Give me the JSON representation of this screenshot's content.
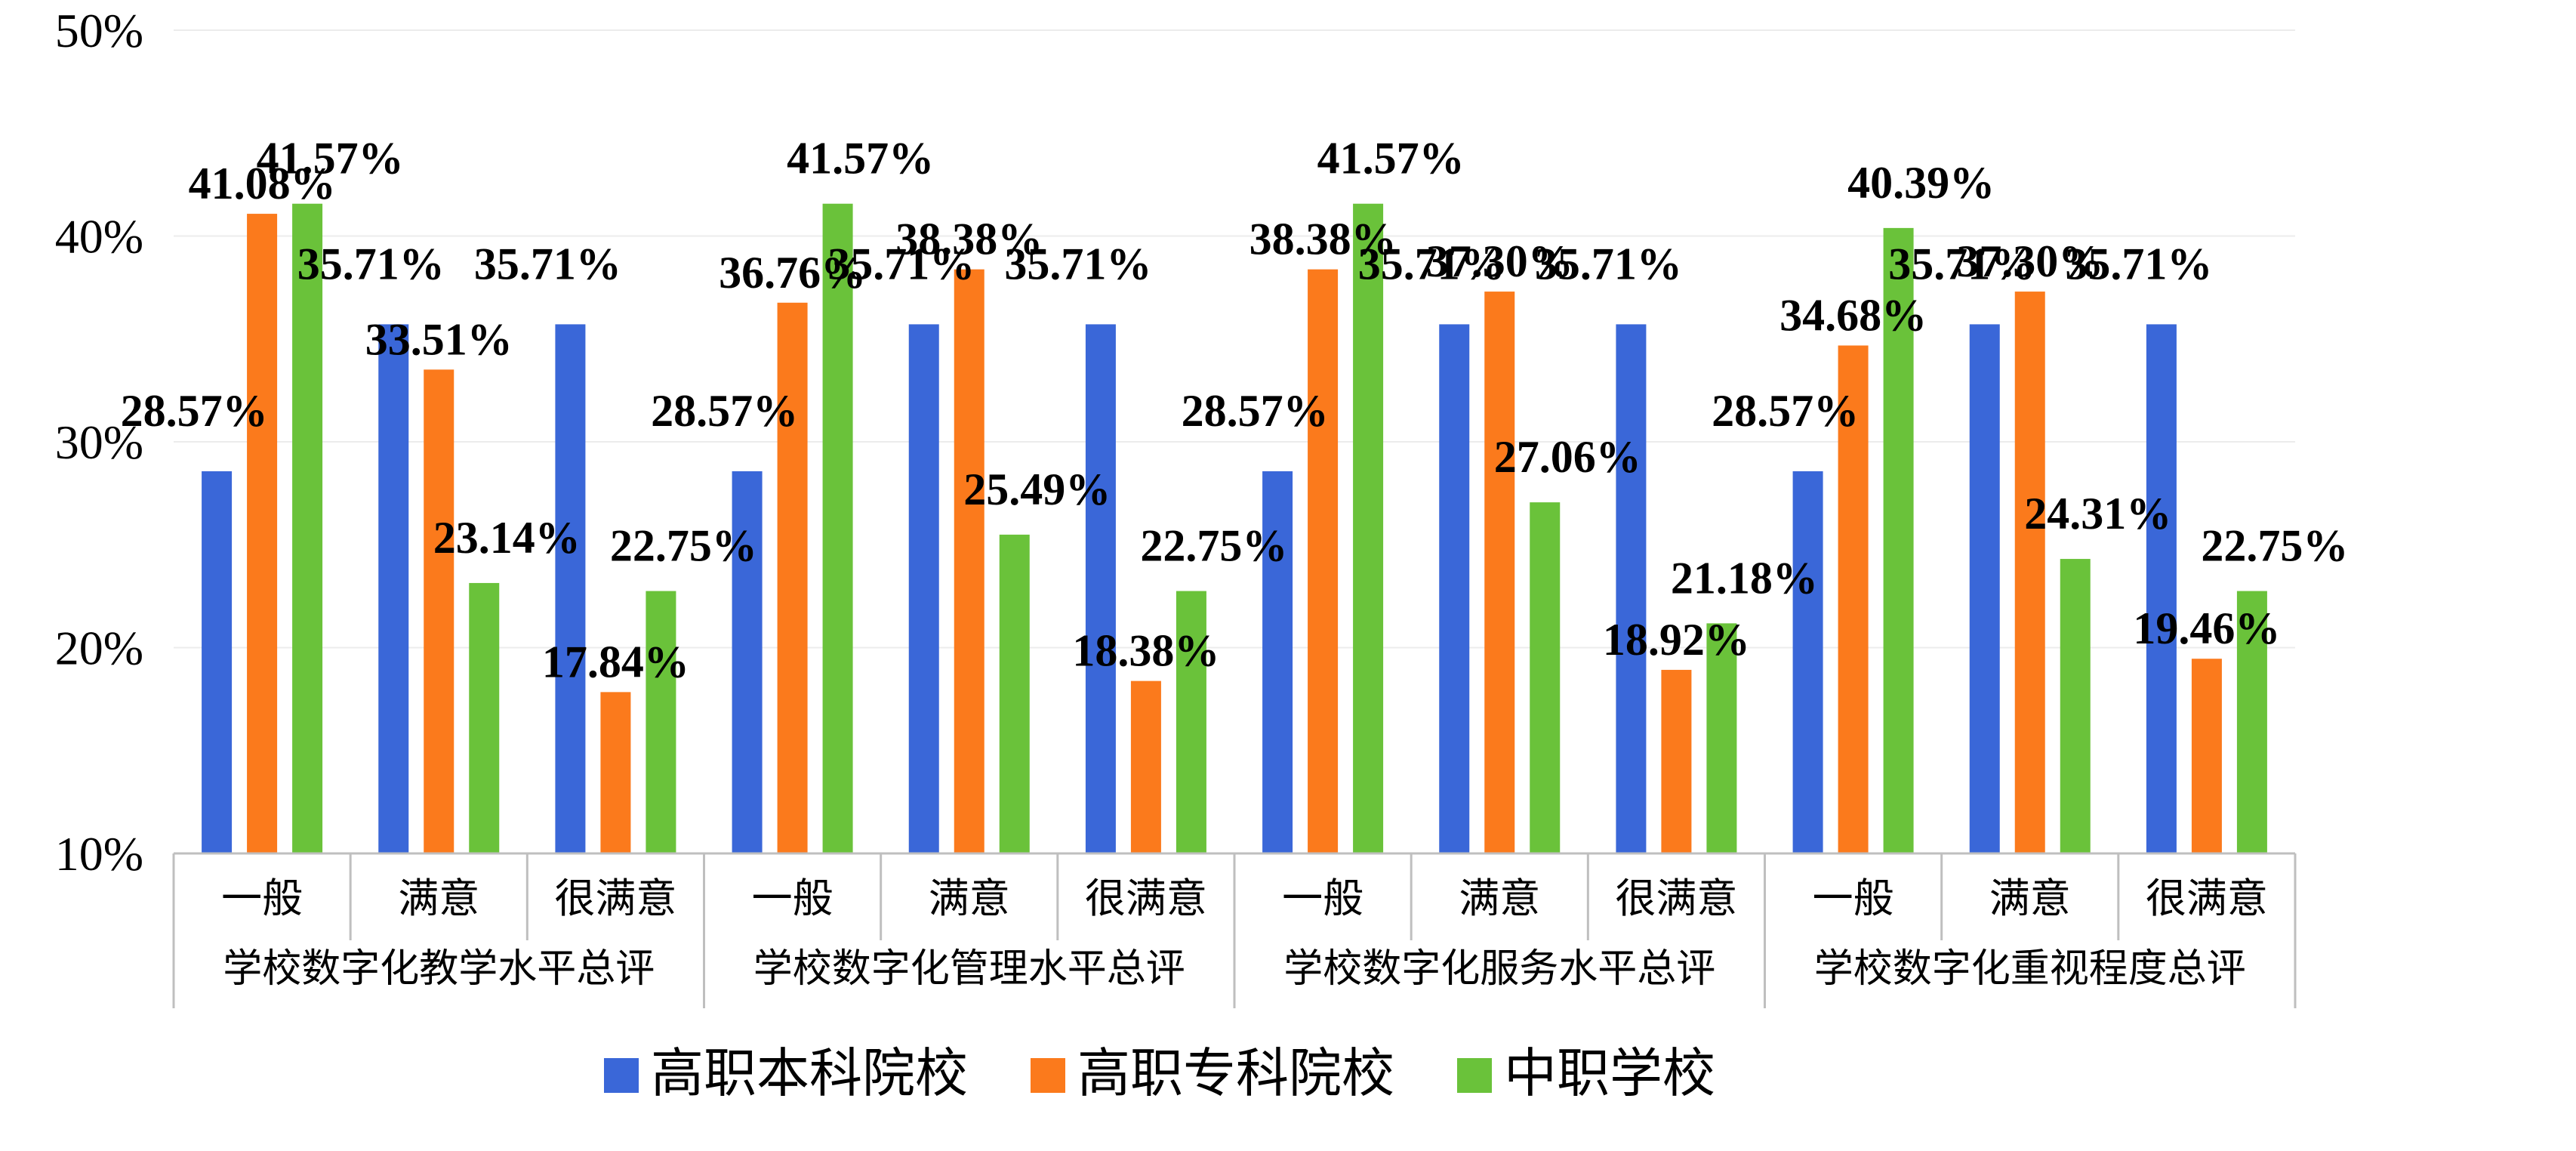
{
  "chart_data": {
    "type": "bar",
    "ylim": [
      10,
      50
    ],
    "yticks": [
      "10%",
      "20%",
      "30%",
      "40%",
      "50%"
    ],
    "y_tick_values": [
      10,
      20,
      30,
      40,
      50
    ],
    "groups": [
      "学校数字化教学水平总评",
      "学校数字化管理水平总评",
      "学校数字化服务水平总评",
      "学校数字化重视程度总评"
    ],
    "subcategories": [
      "一般",
      "满意",
      "很满意"
    ],
    "series": [
      {
        "name": "高职本科院校",
        "color": "#3a67d8",
        "values": [
          28.57,
          35.71,
          35.71,
          28.57,
          35.71,
          35.71,
          28.57,
          35.71,
          35.71,
          28.57,
          35.71,
          35.71
        ],
        "labels": [
          "28.57%",
          "35.71%",
          "35.71%",
          "28.57%",
          "35.71%",
          "35.71%",
          "28.57%",
          "35.71%",
          "35.71%",
          "28.57%",
          "35.71%",
          "35.71%"
        ]
      },
      {
        "name": "高职专科院校",
        "color": "#fb7a1c",
        "values": [
          41.08,
          33.51,
          17.84,
          36.76,
          38.38,
          18.38,
          38.38,
          37.3,
          18.92,
          34.68,
          37.3,
          19.46
        ],
        "labels": [
          "41.08%",
          "33.51%",
          "17.84%",
          "36.76%",
          "38.38%",
          "18.38%",
          "38.38%",
          "37.30%",
          "18.92%",
          "34.68%",
          "37.30%",
          "19.46%"
        ]
      },
      {
        "name": "中职学校",
        "color": "#6ac23a",
        "values": [
          41.57,
          23.14,
          22.75,
          41.57,
          25.49,
          22.75,
          41.57,
          27.06,
          21.18,
          40.39,
          24.31,
          22.75
        ],
        "labels": [
          "41.57%",
          "23.14%",
          "22.75%",
          "41.57%",
          "25.49%",
          "22.75%",
          "41.57%",
          "27.06%",
          "21.18%",
          "40.39%",
          "24.31%",
          "22.75%"
        ]
      }
    ],
    "legend_position": "bottom",
    "grid": true
  }
}
